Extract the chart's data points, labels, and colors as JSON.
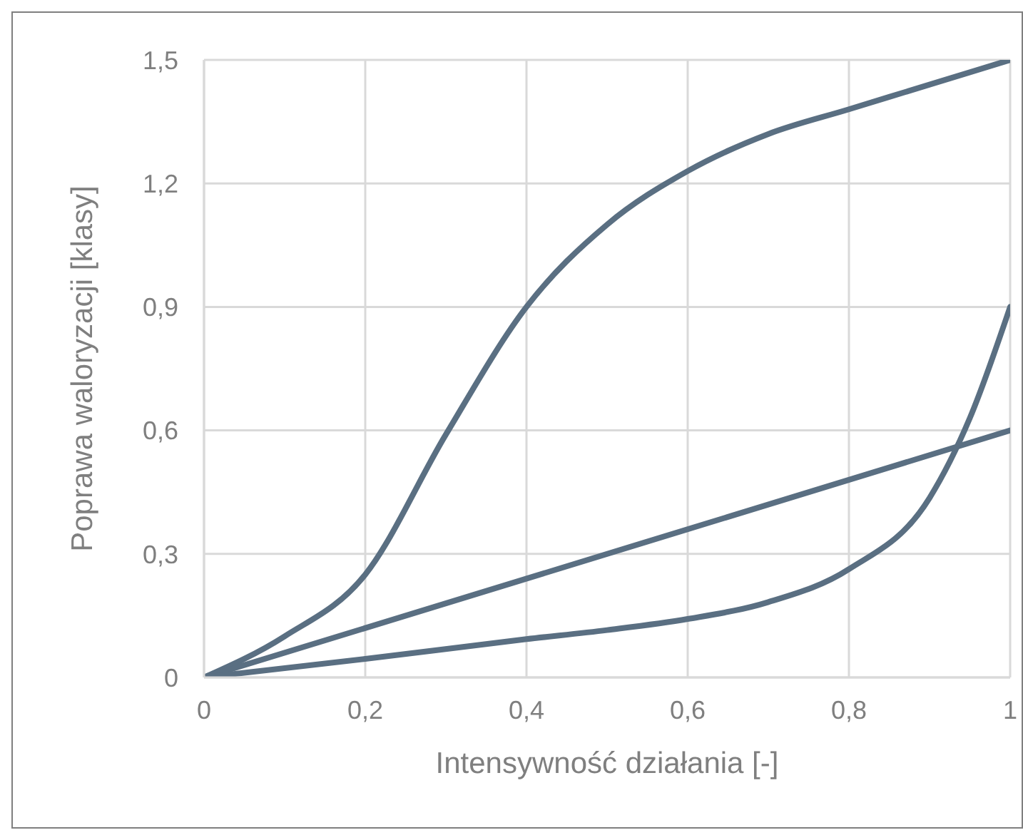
{
  "chart_data": {
    "type": "line",
    "xlabel": "Intensywność działania [-]",
    "ylabel": "Poprawa waloryzacji [klasy]",
    "xlim": [
      0,
      1
    ],
    "ylim": [
      0,
      1.5
    ],
    "xticks": [
      0,
      {
        "value": 0.2,
        "label": "0,2"
      },
      {
        "value": 0.4,
        "label": "0,4"
      },
      {
        "value": 0.6,
        "label": "0,6"
      },
      {
        "value": 0.8,
        "label": "0,8"
      },
      1
    ],
    "yticks": [
      0,
      {
        "value": 0.3,
        "label": "0,3"
      },
      {
        "value": 0.6,
        "label": "0,6"
      },
      {
        "value": 0.9,
        "label": "0,9"
      },
      {
        "value": 1.2,
        "label": "1,2"
      },
      {
        "value": 1.5,
        "label": "1,5"
      }
    ],
    "grid": true,
    "marker": "none",
    "line_style": "solid",
    "series": [
      {
        "color": "#5a6f82",
        "x": [
          0,
          0.1,
          0.2,
          0.3,
          0.4,
          0.5,
          0.6,
          0.7,
          0.8,
          0.9,
          1
        ],
        "values": [
          0,
          0.1,
          0.25,
          0.59,
          0.9,
          1.1,
          1.23,
          1.32,
          1.38,
          1.44,
          1.5
        ]
      },
      {
        "color": "#5a6f82",
        "x": [
          0,
          1
        ],
        "values": [
          0,
          0.6
        ]
      },
      {
        "color": "#5a6f82",
        "x": [
          0,
          0.2,
          0.4,
          0.5,
          0.6,
          0.7,
          0.8,
          0.9,
          0.95,
          1
        ],
        "values": [
          0,
          0.045,
          0.093,
          0.115,
          0.142,
          0.183,
          0.263,
          0.436,
          0.63,
          0.9
        ]
      }
    ]
  }
}
